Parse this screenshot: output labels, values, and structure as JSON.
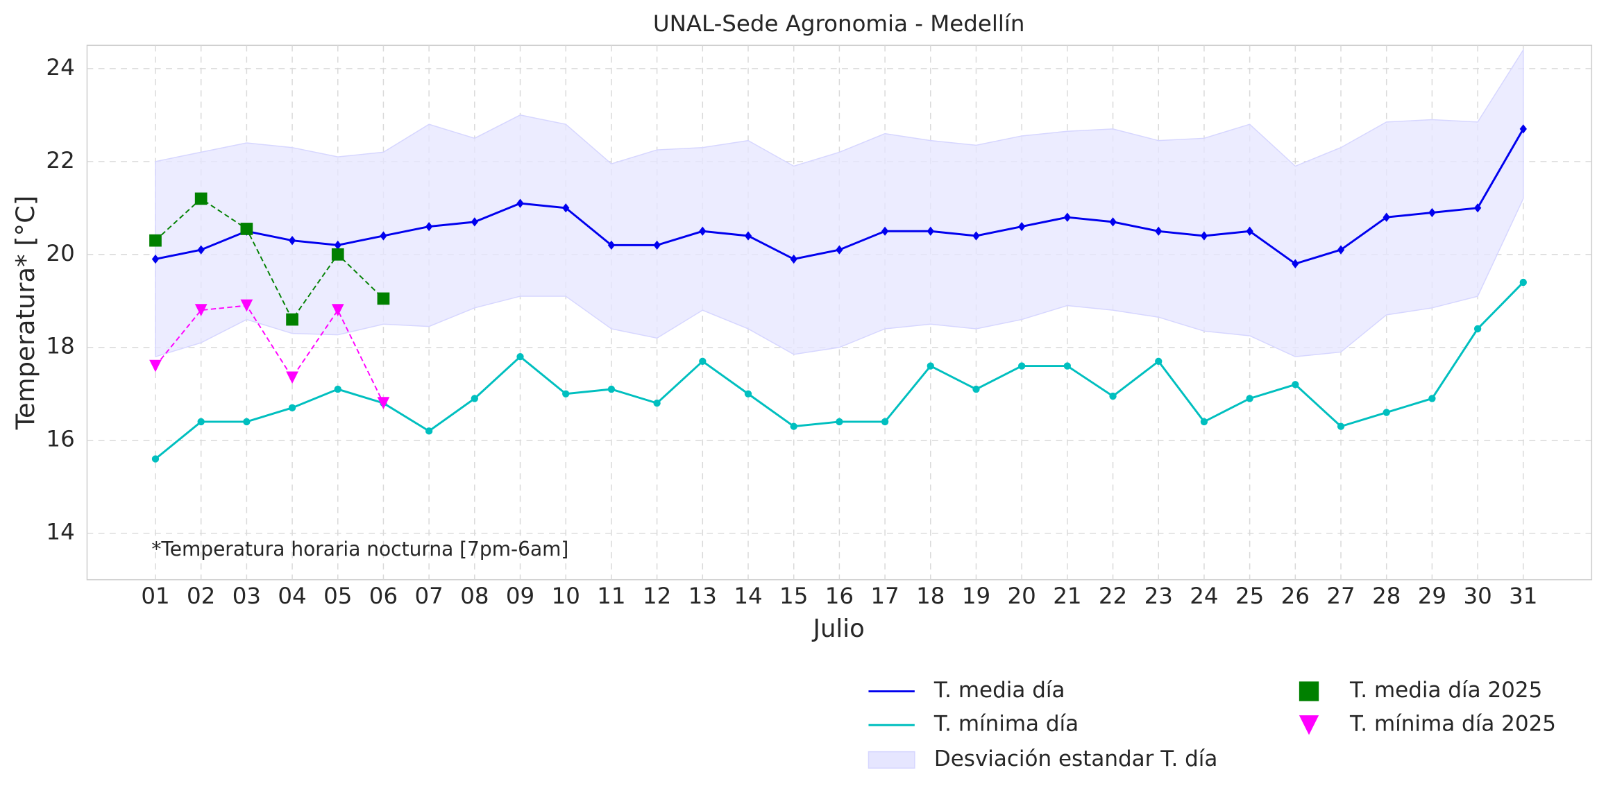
{
  "chart_data": {
    "type": "line",
    "title": "UNAL-Sede Agronomia - Medellín",
    "x_label": "Julio",
    "y_label": "Temperatura* [°C]",
    "annotation": "*Temperatura horaria nocturna [7pm-6am]",
    "categories": [
      "01",
      "02",
      "03",
      "04",
      "05",
      "06",
      "07",
      "08",
      "09",
      "10",
      "11",
      "12",
      "13",
      "14",
      "15",
      "16",
      "17",
      "18",
      "19",
      "20",
      "21",
      "22",
      "23",
      "24",
      "25",
      "26",
      "27",
      "28",
      "29",
      "30",
      "31"
    ],
    "ylim": [
      13,
      24.5
    ],
    "yticks": [
      14,
      16,
      18,
      20,
      22,
      24
    ],
    "grid": true,
    "legend": "lower right",
    "band": {
      "name": "Desviación estandar T. día",
      "color": "#e6e6ff",
      "upper": [
        22.0,
        22.2,
        22.4,
        22.3,
        22.1,
        22.2,
        22.8,
        22.5,
        23.0,
        22.8,
        21.95,
        22.25,
        22.3,
        22.45,
        21.9,
        22.2,
        22.6,
        22.45,
        22.35,
        22.55,
        22.65,
        22.7,
        22.45,
        22.5,
        22.8,
        21.9,
        22.3,
        22.85,
        22.9,
        22.85,
        24.4
      ],
      "lower": [
        17.8,
        18.1,
        18.6,
        18.3,
        18.27,
        18.5,
        18.45,
        18.85,
        19.1,
        19.1,
        18.4,
        18.2,
        18.8,
        18.4,
        17.85,
        18.0,
        18.4,
        18.5,
        18.4,
        18.6,
        18.9,
        18.8,
        18.65,
        18.35,
        18.25,
        17.8,
        17.9,
        18.7,
        18.85,
        19.1,
        21.2
      ]
    },
    "series": [
      {
        "name": "T. media día",
        "color": "#0000ee",
        "marker": "diamond",
        "dash": false,
        "values": [
          19.9,
          20.1,
          20.5,
          20.3,
          20.2,
          20.4,
          20.6,
          20.7,
          21.1,
          21.0,
          20.2,
          20.2,
          20.5,
          20.4,
          19.9,
          20.1,
          20.5,
          20.5,
          20.4,
          20.6,
          20.8,
          20.7,
          20.5,
          20.4,
          20.5,
          19.8,
          20.1,
          20.8,
          20.9,
          21.0,
          22.7
        ]
      },
      {
        "name": "T. mínima día",
        "color": "#00bfbf",
        "marker": "circle",
        "dash": false,
        "values": [
          15.6,
          16.4,
          16.4,
          16.7,
          17.1,
          16.8,
          16.2,
          16.9,
          17.8,
          17.0,
          17.1,
          16.8,
          17.7,
          17.0,
          16.3,
          16.4,
          16.4,
          17.6,
          17.1,
          17.6,
          17.6,
          16.95,
          17.7,
          16.4,
          16.9,
          17.2,
          16.3,
          16.6,
          16.9,
          18.4,
          19.4
        ]
      },
      {
        "name": "T. media día 2025",
        "color": "#008000",
        "marker": "square",
        "dash": true,
        "values": [
          20.3,
          21.2,
          20.55,
          18.6,
          20.0,
          19.05,
          null,
          null,
          null,
          null,
          null,
          null,
          null,
          null,
          null,
          null,
          null,
          null,
          null,
          null,
          null,
          null,
          null,
          null,
          null,
          null,
          null,
          null,
          null,
          null,
          null
        ]
      },
      {
        "name": "T. mínima día 2025",
        "color": "#ff00ff",
        "marker": "triangle-down",
        "dash": true,
        "values": [
          17.6,
          18.8,
          18.9,
          17.35,
          18.8,
          16.8,
          null,
          null,
          null,
          null,
          null,
          null,
          null,
          null,
          null,
          null,
          null,
          null,
          null,
          null,
          null,
          null,
          null,
          null,
          null,
          null,
          null,
          null,
          null,
          null,
          null
        ]
      }
    ]
  }
}
